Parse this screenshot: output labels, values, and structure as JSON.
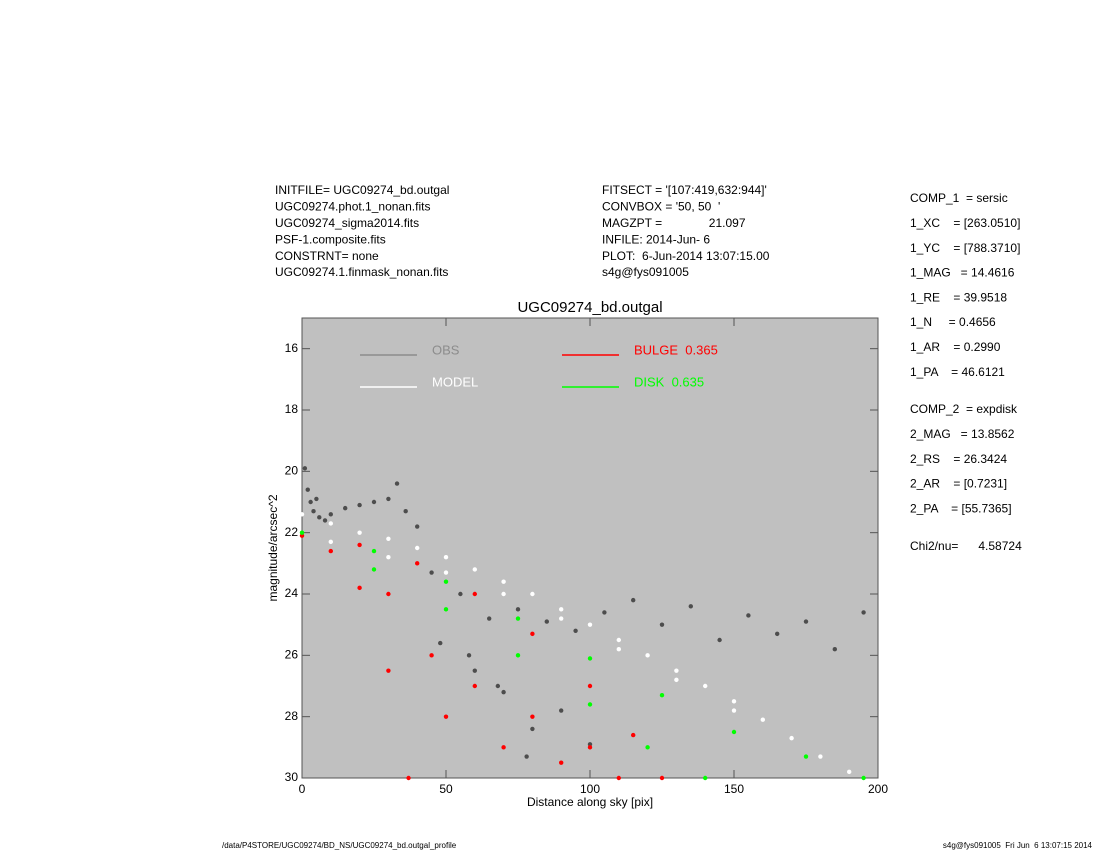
{
  "header": {
    "left": [
      "INITFILE= UGC09274_bd.outgal",
      "UGC09274.phot.1_nonan.fits",
      "UGC09274_sigma2014.fits",
      "PSF-1.composite.fits",
      "CONSTRNT= none",
      "UGC09274.1.finmask_nonan.fits"
    ],
    "middle": [
      "FITSECT = '[107:419,632:944]'",
      "CONVBOX = '50, 50  '",
      "MAGZPT =              21.097",
      "INFILE: 2014-Jun- 6",
      "PLOT:  6-Jun-2014 13:07:15.00",
      "s4g@fys091005"
    ],
    "params1": [
      "COMP_1  = sersic",
      "1_XC    = [263.0510]",
      "1_YC    = [788.3710]",
      "1_MAG   = 14.4616",
      "1_RE    = 39.9518",
      "1_N     = 0.4656",
      "1_AR    = 0.2990",
      "1_PA    = 46.6121"
    ],
    "params2": [
      "COMP_2  = expdisk",
      "2_MAG   = 13.8562",
      "2_RS    = 26.3424",
      "2_AR    = [0.7231]",
      "2_PA    = [55.7365]"
    ],
    "chi": "Chi2/nu=      4.58724"
  },
  "footer": {
    "left": "/data/P4STORE/UGC09274/BD_NS/UGC09274_bd.outgal_profile",
    "right": "s4g@fys091005  Fri Jun  6 13:07:15 2014"
  },
  "chart_data": {
    "type": "scatter",
    "title": "UGC09274_bd.outgal",
    "x_label": "Distance along sky [pix]",
    "y_label": "magnitude/arcsec^2",
    "xlim": [
      0,
      200
    ],
    "ylim": [
      30,
      15
    ],
    "xticks": [
      0,
      50,
      100,
      150,
      200
    ],
    "yticks": [
      16,
      18,
      20,
      22,
      24,
      26,
      28,
      30
    ],
    "background": "#c0c0c0",
    "series": [
      {
        "name": "OBS",
        "color": "#4d4d4d",
        "legend_color": "#8c8c8c",
        "x": [
          1,
          2,
          3,
          4,
          5,
          6,
          8,
          10,
          15,
          20,
          25,
          30,
          33,
          36,
          40,
          45,
          55,
          65,
          75,
          85,
          95,
          105,
          115,
          125,
          135,
          145,
          155,
          165,
          175,
          185,
          195,
          60,
          70,
          80,
          90,
          100,
          48,
          58,
          68,
          78
        ],
        "values": [
          19.9,
          20.6,
          21.0,
          21.3,
          20.9,
          21.5,
          21.6,
          21.4,
          21.2,
          21.1,
          21.0,
          20.9,
          20.4,
          21.3,
          21.8,
          23.3,
          24.0,
          24.8,
          24.5,
          24.9,
          25.2,
          24.6,
          24.2,
          25.0,
          24.4,
          25.5,
          24.7,
          25.3,
          24.9,
          25.8,
          24.6,
          26.5,
          27.2,
          28.4,
          27.8,
          28.9,
          25.6,
          26.0,
          27.0,
          29.3
        ]
      },
      {
        "name": "MODEL",
        "color": "#ffffff",
        "legend_color": "#ffffff",
        "x": [
          0,
          10,
          20,
          30,
          40,
          50,
          60,
          70,
          80,
          90,
          100,
          110,
          120,
          130,
          140,
          150,
          160,
          170,
          180,
          190,
          10,
          30,
          50,
          70,
          90,
          110,
          130,
          150
        ],
        "values": [
          21.4,
          21.7,
          22.0,
          22.2,
          22.5,
          22.8,
          23.2,
          23.6,
          24.0,
          24.5,
          25.0,
          25.5,
          26.0,
          26.5,
          27.0,
          27.5,
          28.1,
          28.7,
          29.3,
          29.8,
          22.3,
          22.8,
          23.3,
          24.0,
          24.8,
          25.8,
          26.8,
          27.8
        ]
      },
      {
        "name": "BULGE  0.365",
        "color": "#ff0000",
        "legend_color": "#ff0000",
        "x": [
          0,
          10,
          20,
          30,
          37,
          20,
          40,
          60,
          80,
          100,
          115,
          125,
          30,
          45,
          50,
          60,
          70,
          80,
          90,
          100,
          110
        ],
        "values": [
          22.1,
          22.6,
          23.8,
          26.5,
          30,
          22.4,
          23.0,
          24.0,
          25.3,
          27.0,
          28.6,
          30,
          24.0,
          26.0,
          28.0,
          27.0,
          29.0,
          28.0,
          29.5,
          29.0,
          30.0
        ]
      },
      {
        "name": "DISK  0.635",
        "color": "#00ff00",
        "legend_color": "#00ff00",
        "x": [
          0,
          25,
          50,
          75,
          100,
          125,
          150,
          175,
          195,
          25,
          50,
          75,
          100,
          120,
          140
        ],
        "values": [
          22.0,
          22.6,
          23.6,
          24.8,
          26.1,
          27.3,
          28.5,
          29.3,
          30.0,
          23.2,
          24.5,
          26.0,
          27.6,
          29.0,
          30.0
        ]
      }
    ]
  }
}
